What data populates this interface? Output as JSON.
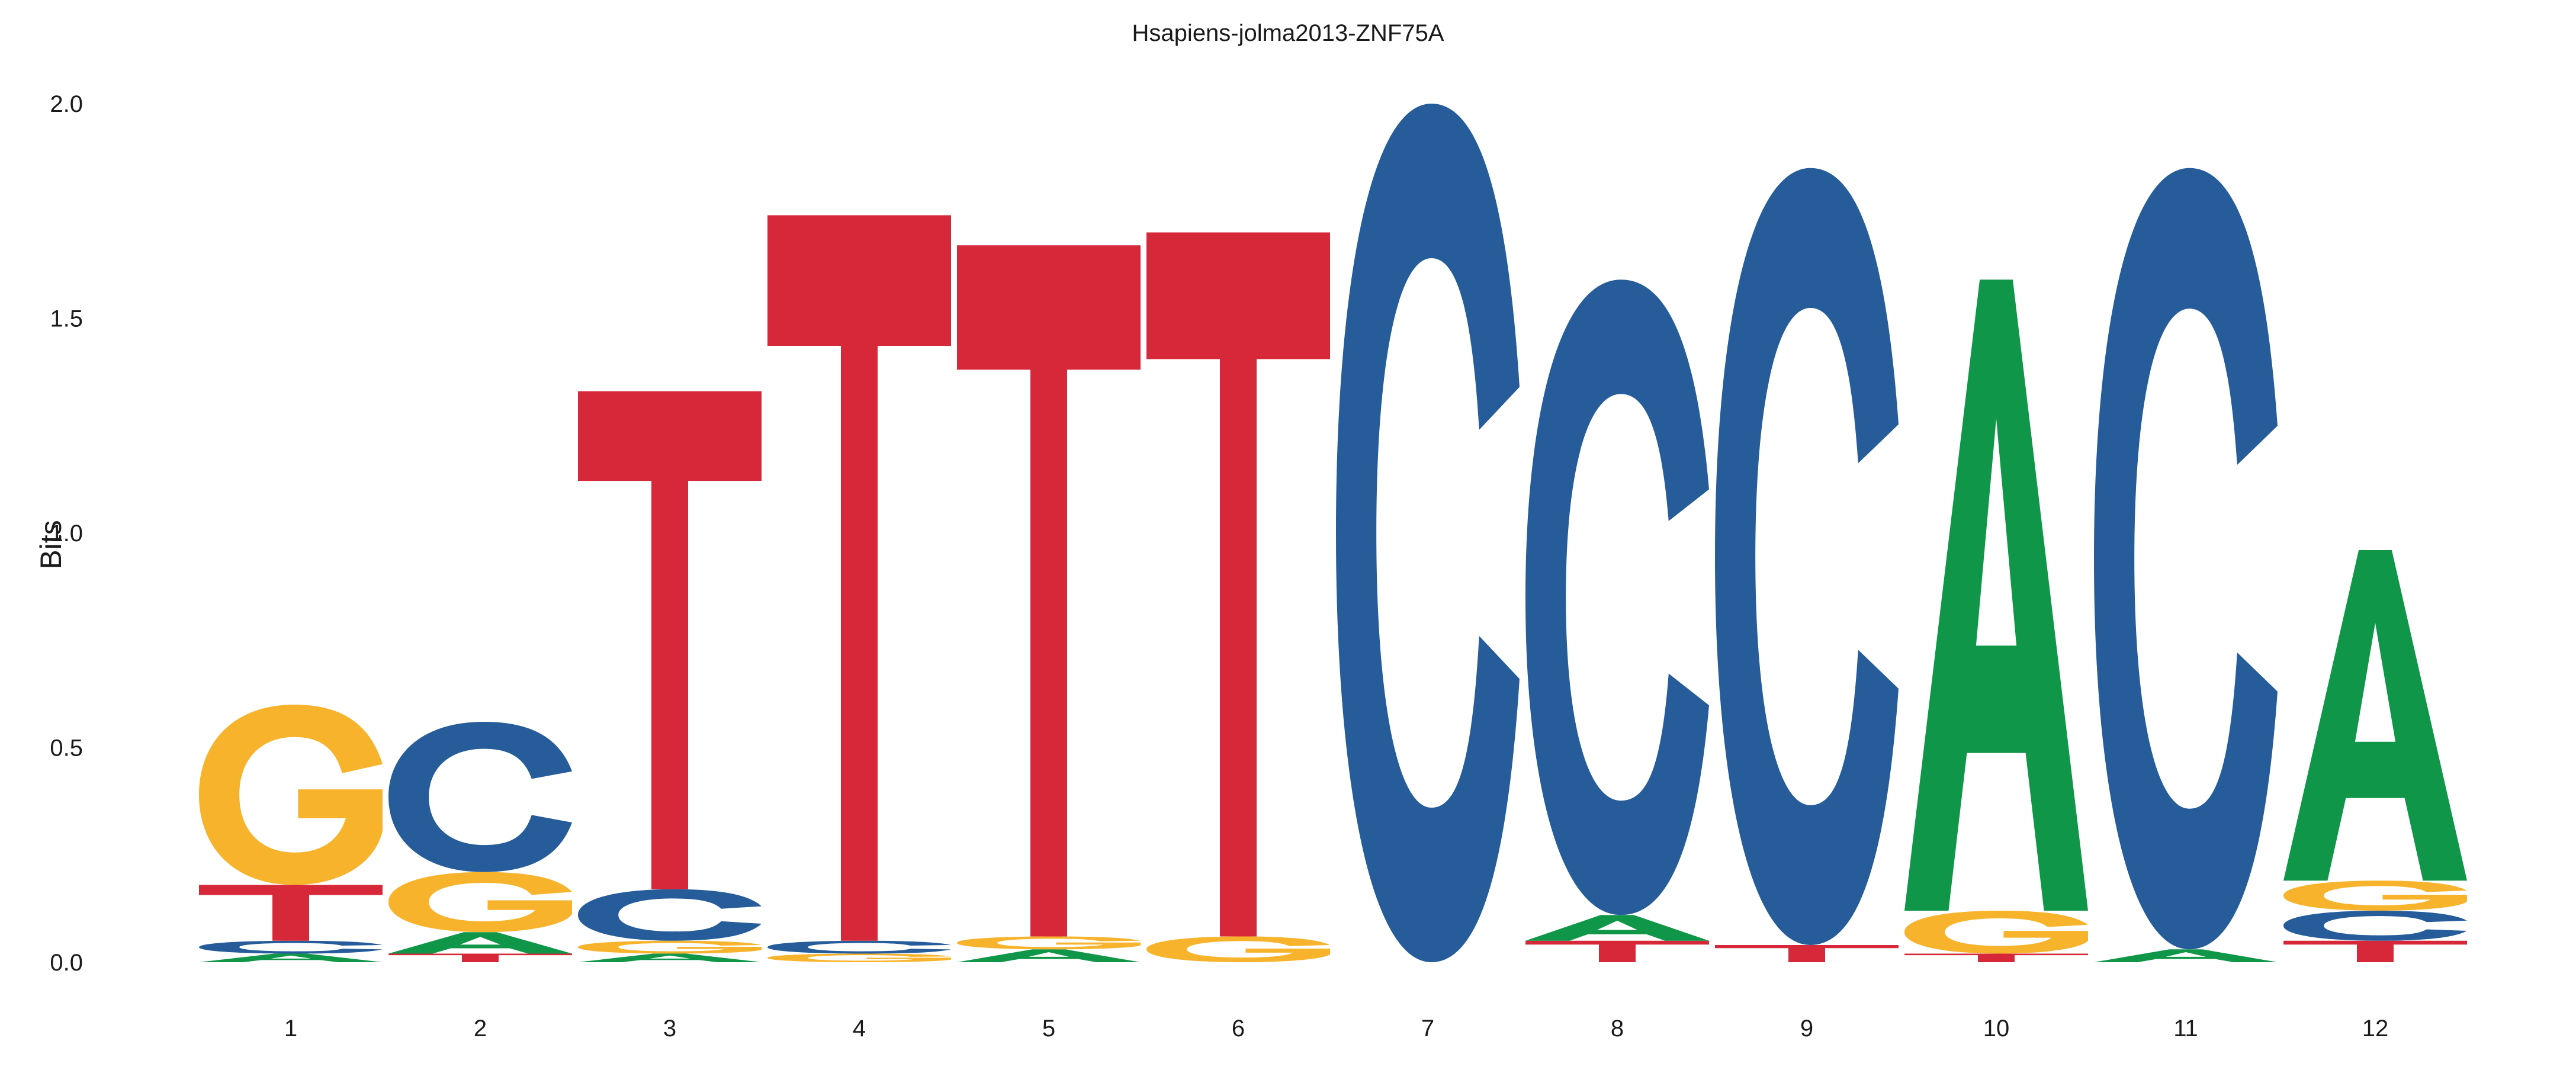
{
  "chart_data": {
    "type": "sequence-logo",
    "title": "Hsapiens-jolma2013-ZNF75A",
    "ylabel": "Bits",
    "xlabel": "",
    "ylim": [
      0,
      2
    ],
    "yticks": [
      "0.0",
      "0.5",
      "1.0",
      "1.5",
      "2.0"
    ],
    "grid": false,
    "legend": "none",
    "colors": {
      "A": "#109648",
      "C": "#255c99",
      "G": "#f7b32b",
      "T": "#d62839"
    },
    "positions": [
      {
        "label": "1",
        "letters": [
          {
            "base": "A",
            "bits": 0.02
          },
          {
            "base": "C",
            "bits": 0.03
          },
          {
            "base": "T",
            "bits": 0.13
          },
          {
            "base": "G",
            "bits": 0.42
          }
        ]
      },
      {
        "label": "2",
        "letters": [
          {
            "base": "T",
            "bits": 0.02
          },
          {
            "base": "A",
            "bits": 0.05
          },
          {
            "base": "G",
            "bits": 0.14
          },
          {
            "base": "C",
            "bits": 0.35
          }
        ]
      },
      {
        "label": "3",
        "letters": [
          {
            "base": "A",
            "bits": 0.02
          },
          {
            "base": "G",
            "bits": 0.03
          },
          {
            "base": "C",
            "bits": 0.12
          },
          {
            "base": "T",
            "bits": 1.16
          }
        ]
      },
      {
        "label": "4",
        "letters": [
          {
            "base": "G",
            "bits": 0.02
          },
          {
            "base": "C",
            "bits": 0.03
          },
          {
            "base": "T",
            "bits": 1.69
          }
        ]
      },
      {
        "label": "5",
        "letters": [
          {
            "base": "A",
            "bits": 0.03
          },
          {
            "base": "G",
            "bits": 0.03
          },
          {
            "base": "T",
            "bits": 1.61
          }
        ]
      },
      {
        "label": "6",
        "letters": [
          {
            "base": "G",
            "bits": 0.06
          },
          {
            "base": "T",
            "bits": 1.64
          }
        ]
      },
      {
        "label": "7",
        "letters": [
          {
            "base": "C",
            "bits": 2.0
          }
        ]
      },
      {
        "label": "8",
        "letters": [
          {
            "base": "T",
            "bits": 0.05
          },
          {
            "base": "A",
            "bits": 0.06
          },
          {
            "base": "C",
            "bits": 1.48
          }
        ]
      },
      {
        "label": "9",
        "letters": [
          {
            "base": "T",
            "bits": 0.04
          },
          {
            "base": "C",
            "bits": 1.81
          }
        ]
      },
      {
        "label": "10",
        "letters": [
          {
            "base": "T",
            "bits": 0.02
          },
          {
            "base": "G",
            "bits": 0.1
          },
          {
            "base": "A",
            "bits": 1.47
          }
        ]
      },
      {
        "label": "11",
        "letters": [
          {
            "base": "A",
            "bits": 0.03
          },
          {
            "base": "C",
            "bits": 1.82
          }
        ]
      },
      {
        "label": "12",
        "letters": [
          {
            "base": "T",
            "bits": 0.05
          },
          {
            "base": "C",
            "bits": 0.07
          },
          {
            "base": "G",
            "bits": 0.07
          },
          {
            "base": "A",
            "bits": 0.77
          }
        ]
      }
    ]
  }
}
